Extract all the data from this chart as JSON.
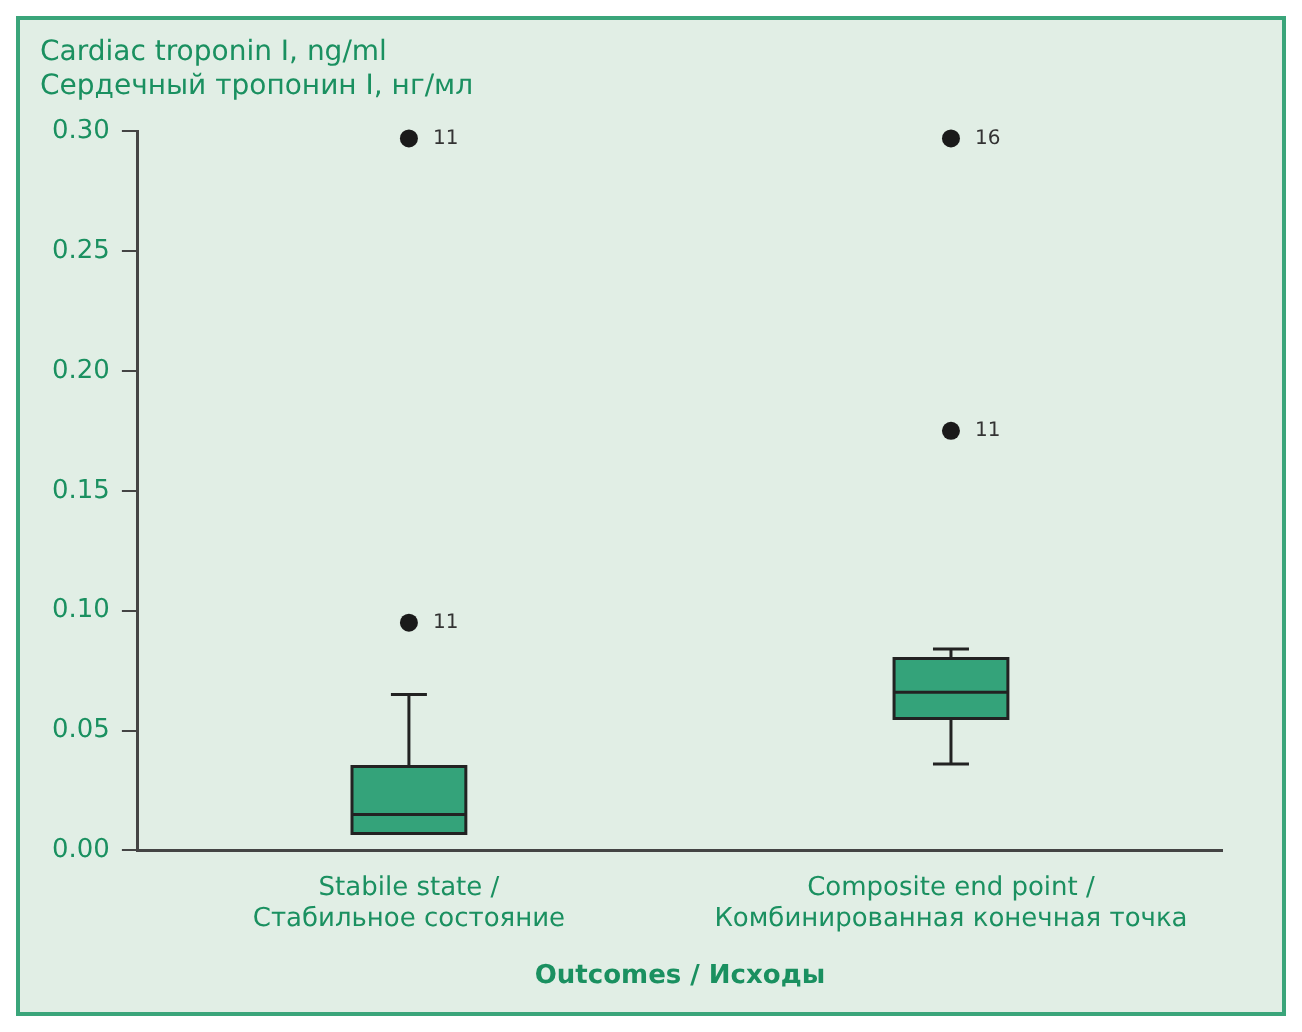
{
  "chart_data": {
    "type": "box",
    "ylabel": "Cardiac troponin I, ng/ml\nСердечный тропонин I, нг/мл",
    "xlabel": "Outcomes / Исходы",
    "categories": [
      "Stabile state /\nСтабильное состояние",
      "Composite end point /\nКомбинированная конечная точка"
    ],
    "color": "#34a37a",
    "boxes": [
      {
        "low": 0.007,
        "q1": 0.007,
        "median": 0.015,
        "q3": 0.035,
        "high": 0.065,
        "outliers": [
          0.095,
          0.297
        ]
      },
      {
        "low": 0.036,
        "q1": 0.055,
        "median": 0.066,
        "q3": 0.08,
        "high": 0.084,
        "outliers": [
          0.175,
          0.297
        ]
      }
    ],
    "annotations": [
      "11",
      "11",
      "11",
      "16"
    ],
    "ylim": [
      0,
      0.3
    ],
    "yticks": [
      {
        "value": 0,
        "label": "0.00"
      },
      {
        "value": 0.05,
        "label": "0.05"
      },
      {
        "value": 0.1,
        "label": "0.10"
      },
      {
        "value": 0.15,
        "label": "0.15"
      },
      {
        "value": 0.2,
        "label": "0.20"
      },
      {
        "value": 0.25,
        "label": "0.25"
      },
      {
        "value": 0.3,
        "label": "0.30"
      }
    ],
    "grid": false,
    "legend": false
  }
}
